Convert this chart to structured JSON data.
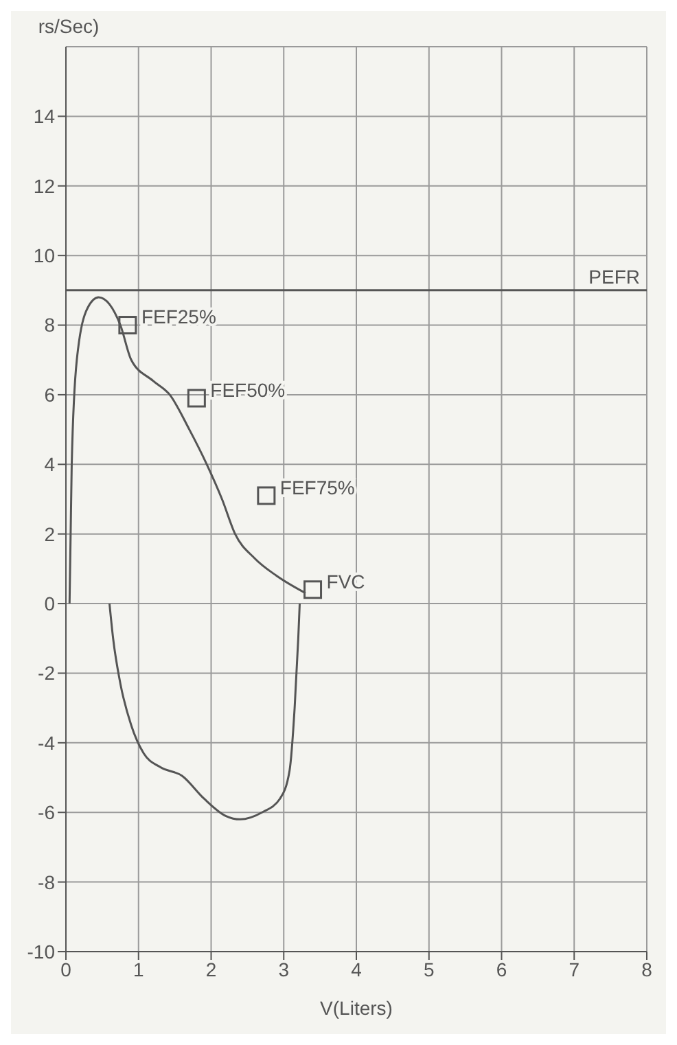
{
  "chart_data": {
    "type": "line",
    "ylabel": "rs/Sec)",
    "xlabel": "V(Liters)",
    "xlim": [
      0,
      8
    ],
    "xticks": [
      0,
      1,
      2,
      3,
      4,
      5,
      6,
      7,
      8
    ],
    "ylim": [
      -10,
      16
    ],
    "yticks": [
      -10,
      -8,
      -6,
      -4,
      -2,
      0,
      2,
      4,
      6,
      8,
      10,
      12,
      14
    ],
    "grid": true,
    "series": [
      {
        "type": "line",
        "color": "#555555",
        "marker": "none",
        "line_style": "solid",
        "x": [
          0.05,
          0.08,
          0.15,
          0.3,
          0.45,
          0.6,
          0.75,
          0.9,
          1.2,
          1.43,
          1.7,
          1.94,
          2.15,
          2.33,
          2.6,
          2.9,
          3.3
        ],
        "values": [
          0,
          4,
          7,
          8.5,
          8.8,
          8.6,
          8,
          7,
          6.4,
          6,
          5,
          4,
          3,
          2,
          1.3,
          0.8,
          0.3
        ]
      },
      {
        "type": "line",
        "color": "#555555",
        "marker": "none",
        "line_style": "solid",
        "x": [
          0.6,
          0.65,
          0.75,
          0.9,
          1.07,
          1.3,
          1.6,
          1.9,
          2.2,
          2.4,
          2.7,
          2.95,
          3.08,
          3.15,
          3.2,
          3.22
        ],
        "values": [
          0,
          -1,
          -2.3,
          -3.5,
          -4.3,
          -4.7,
          -4.95,
          -5.6,
          -6.1,
          -6.2,
          -6,
          -5.6,
          -4.8,
          -3,
          -1,
          0
        ]
      },
      {
        "type": "scatter",
        "color": "#555555",
        "marker": "square",
        "x": [
          0.85,
          1.8,
          2.76,
          3.4
        ],
        "values": [
          8,
          5.9,
          3.1,
          0.4
        ]
      }
    ],
    "ref_lines": [
      {
        "axis": "y",
        "value": 9,
        "label": "PEFR",
        "color": "#555555"
      }
    ],
    "annotations": [
      {
        "text": "FEF25%",
        "x": 0.85,
        "y": 8
      },
      {
        "text": "FEF50%",
        "x": 1.8,
        "y": 5.9
      },
      {
        "text": "FEF75%",
        "x": 2.76,
        "y": 3.1
      },
      {
        "text": "FVC",
        "x": 3.4,
        "y": 0.4
      }
    ]
  }
}
